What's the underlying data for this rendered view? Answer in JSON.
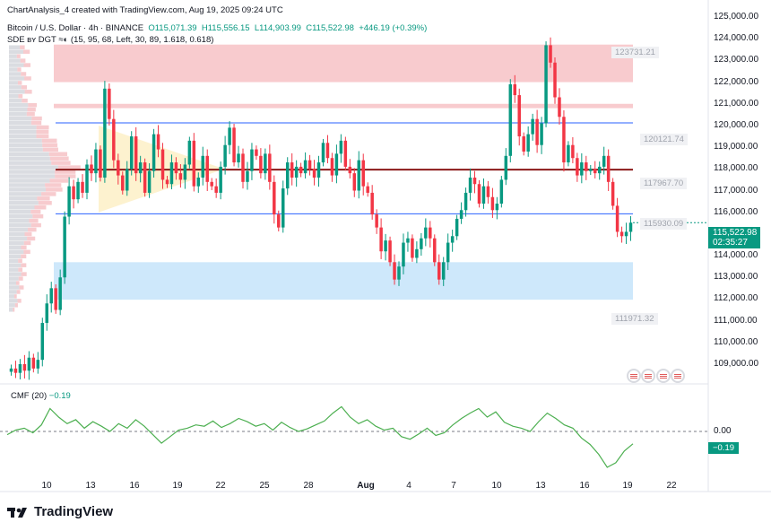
{
  "header": {
    "created_by": "ChartAnalysis_4 created with TradingView.com, Aug 19, 2025 09:24 UTC",
    "symbol": "Bitcoin / U.S. Dollar · 4h · BINANCE",
    "open": "O115,071.39",
    "high": "H115,556.15",
    "low": "L114,903.99",
    "close": "C115,522.98",
    "change": "+446.19 (+0.39%)",
    "indicator": "SDE ʙʏ DGT ≈◐ (15, 95, 68, Left, 30, 89, 1.618, 0.618)"
  },
  "price_axis": [
    "126,000.00",
    "125,000.00",
    "124,000.00",
    "123,000.00",
    "122,000.00",
    "121,000.00",
    "120,000.00",
    "119,000.00",
    "118,000.00",
    "117,000.00",
    "116,000.00",
    "115,000.00",
    "114,000.00",
    "113,000.00",
    "112,000.00",
    "111,000.00",
    "110,000.00",
    "109,000.00"
  ],
  "time_axis": [
    "10",
    "13",
    "16",
    "19",
    "22",
    "25",
    "28",
    "Aug",
    "4",
    "7",
    "10",
    "13",
    "16",
    "19",
    "22"
  ],
  "levels": {
    "top": "123731.21",
    "l1": "120121.74",
    "l2": "117967.70",
    "l3": "115930.09",
    "bottom": "111971.32"
  },
  "current_price": {
    "value": "115,522.98",
    "countdown": "02:35:27"
  },
  "cmf": {
    "label": "CMF (20)",
    "value": "−0.19",
    "tag": "−0.19",
    "zero": "0.00"
  },
  "brand": "TradingView",
  "colors": {
    "up": "#089981",
    "down": "#f23645",
    "level_line": "#2962ff",
    "resistance_zone": "#f7c5c9",
    "support_zone": "#c9e6fb"
  },
  "chart_data": {
    "type": "candlestick",
    "title": "Bitcoin / U.S. Dollar · 4h · BINANCE",
    "x_ticks": [
      "10",
      "13",
      "16",
      "19",
      "22",
      "25",
      "28",
      "Aug",
      "4",
      "7",
      "10",
      "13",
      "16",
      "19",
      "22"
    ],
    "ylim": [
      108500,
      126000
    ],
    "y_log": false,
    "grid": false,
    "last": 115522.98,
    "horizontal_levels": [
      120121.74,
      117967.7,
      115930.09
    ],
    "zones": [
      {
        "name": "resistance",
        "from": 122000,
        "to": 123731.21
      },
      {
        "name": "resistance-thin",
        "from": 120800,
        "to": 121000
      },
      {
        "name": "support",
        "from": 111971.32,
        "to": 113700
      }
    ],
    "candles_close": [
      108800,
      108600,
      109000,
      108700,
      109300,
      108800,
      109200,
      110900,
      111800,
      112500,
      111500,
      113000,
      115800,
      117200,
      116600,
      117400,
      116900,
      118200,
      117800,
      118900,
      117600,
      121700,
      120300,
      118400,
      117700,
      117000,
      118000,
      119500,
      117800,
      118300,
      116900,
      117900,
      119600,
      118900,
      117500,
      117300,
      118300,
      117800,
      117500,
      118200,
      119300,
      117200,
      117600,
      118600,
      117400,
      117200,
      116900,
      118100,
      119100,
      119900,
      118300,
      118700,
      117400,
      117900,
      118900,
      118600,
      117800,
      118700,
      117400,
      115900,
      115300,
      117100,
      118300,
      117600,
      118100,
      117800,
      118400,
      118000,
      117600,
      118300,
      119200,
      118500,
      117700,
      118700,
      119300,
      118100,
      117800,
      117000,
      118400,
      117200,
      116900,
      115900,
      115300,
      114200,
      114700,
      113700,
      112900,
      113500,
      114600,
      114800,
      113900,
      114300,
      114800,
      115300,
      114800,
      113700,
      112900,
      113700,
      114600,
      114900,
      115700,
      116100,
      116900,
      117600,
      117300,
      116400,
      117200,
      116700,
      116100,
      116400,
      117500,
      118600,
      121900,
      121400,
      119500,
      118800,
      119600,
      120300,
      119100,
      120100,
      123700,
      122900,
      121300,
      120400,
      118300,
      119100,
      118500,
      117700,
      118300,
      117900,
      118000,
      117800,
      118100,
      118600,
      117400,
      116300,
      115100,
      114900,
      115100,
      115523
    ],
    "cmf": {
      "values": [
        -0.05,
        0.02,
        0.05,
        -0.02,
        0.1,
        0.35,
        0.22,
        0.12,
        0.18,
        0.05,
        0.15,
        0.08,
        0.0,
        0.12,
        0.05,
        0.18,
        0.08,
        -0.05,
        -0.18,
        -0.08,
        0.02,
        0.05,
        0.1,
        0.08,
        0.16,
        0.06,
        0.12,
        0.2,
        0.15,
        0.08,
        0.12,
        0.02,
        0.14,
        0.06,
        0.0,
        0.04,
        0.1,
        0.16,
        0.28,
        0.38,
        0.22,
        0.12,
        0.18,
        0.08,
        0.02,
        0.05,
        -0.08,
        -0.12,
        -0.04,
        0.05,
        -0.06,
        -0.02,
        0.1,
        0.2,
        0.28,
        0.35,
        0.22,
        0.3,
        0.14,
        0.08,
        0.05,
        0.0,
        0.15,
        0.28,
        0.2,
        0.1,
        0.05,
        -0.1,
        -0.2,
        -0.35,
        -0.55,
        -0.48,
        -0.3,
        -0.19
      ],
      "zero": 0.0,
      "last": -0.19
    }
  }
}
